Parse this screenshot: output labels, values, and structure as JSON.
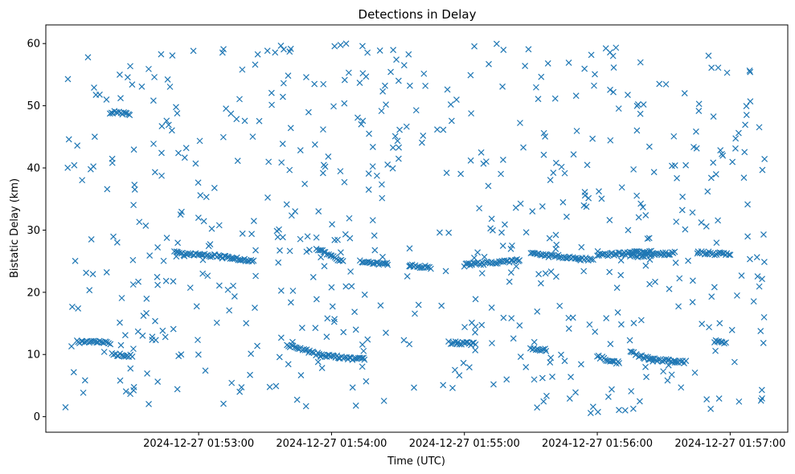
{
  "chart_data": {
    "type": "scatter",
    "title": "Detections in Delay",
    "xlabel": "Time (UTC)",
    "ylabel": "Bistatic Delay (km)",
    "marker": "x",
    "color": "#1f77b4",
    "grid": false,
    "x_unit": "time",
    "xlim": [
      "2024-12-27 01:51:51",
      "2024-12-27 01:57:26"
    ],
    "ylim": [
      -2.5,
      63
    ],
    "x_ticks": [
      "2024-12-27 01:53:00",
      "2024-12-27 01:54:00",
      "2024-12-27 01:55:00",
      "2024-12-27 01:56:00",
      "2024-12-27 01:57:00"
    ],
    "y_ticks": [
      "0",
      "10",
      "20",
      "30",
      "40",
      "50",
      "60"
    ],
    "series": [
      {
        "tracks": [
          {
            "x": [
              "2024-12-27 01:52:05",
              "2024-12-27 01:52:20"
            ],
            "y": [
              12.1,
              11.9
            ]
          },
          {
            "x": [
              "2024-12-27 01:52:21",
              "2024-12-27 01:52:30"
            ],
            "y": [
              10.1,
              9.7
            ]
          },
          {
            "x": [
              "2024-12-27 01:52:20",
              "2024-12-27 01:52:29"
            ],
            "y": [
              49.0,
              48.7
            ]
          },
          {
            "x": [
              "2024-12-27 01:52:50",
              "2024-12-27 01:53:15"
            ],
            "y": [
              26.3,
              25.6
            ]
          },
          {
            "x": [
              "2024-12-27 01:53:15",
              "2024-12-27 01:53:25"
            ],
            "y": [
              25.6,
              25.0
            ]
          },
          {
            "x": [
              "2024-12-27 01:53:40",
              "2024-12-27 01:53:55"
            ],
            "y": [
              11.5,
              9.9
            ]
          },
          {
            "x": [
              "2024-12-27 01:53:55",
              "2024-12-27 01:54:15"
            ],
            "y": [
              9.8,
              9.2
            ]
          },
          {
            "x": [
              "2024-12-27 01:53:53",
              "2024-12-27 01:54:05"
            ],
            "y": [
              27.0,
              25.0
            ]
          },
          {
            "x": [
              "2024-12-27 01:54:13",
              "2024-12-27 01:54:25"
            ],
            "y": [
              24.9,
              24.5
            ]
          },
          {
            "x": [
              "2024-12-27 01:54:35",
              "2024-12-27 01:54:45"
            ],
            "y": [
              24.3,
              24.0
            ]
          },
          {
            "x": [
              "2024-12-27 01:54:53",
              "2024-12-27 01:55:05"
            ],
            "y": [
              11.9,
              11.7
            ]
          },
          {
            "x": [
              "2024-12-27 01:55:00",
              "2024-12-27 01:55:25"
            ],
            "y": [
              24.4,
              25.1
            ]
          },
          {
            "x": [
              "2024-12-27 01:55:30",
              "2024-12-27 01:55:37"
            ],
            "y": [
              11.0,
              10.8
            ]
          },
          {
            "x": [
              "2024-12-27 01:55:30",
              "2024-12-27 01:55:58"
            ],
            "y": [
              26.2,
              25.2
            ]
          },
          {
            "x": [
              "2024-12-27 01:56:00",
              "2024-12-27 01:56:10"
            ],
            "y": [
              9.7,
              8.6
            ]
          },
          {
            "x": [
              "2024-12-27 01:56:00",
              "2024-12-27 01:56:25"
            ],
            "y": [
              26.0,
              26.5
            ]
          },
          {
            "x": [
              "2024-12-27 01:56:15",
              "2024-12-27 01:56:25"
            ],
            "y": [
              10.3,
              9.1
            ]
          },
          {
            "x": [
              "2024-12-27 01:56:15",
              "2024-12-27 01:56:35"
            ],
            "y": [
              25.8,
              26.3
            ]
          },
          {
            "x": [
              "2024-12-27 01:56:25",
              "2024-12-27 01:56:40"
            ],
            "y": [
              9.2,
              8.8
            ]
          },
          {
            "x": [
              "2024-12-27 01:56:45",
              "2024-12-27 01:57:00"
            ],
            "y": [
              26.4,
              26.1
            ]
          },
          {
            "x": [
              "2024-12-27 01:56:53",
              "2024-12-27 01:56:58"
            ],
            "y": [
              12.1,
              12.0
            ]
          }
        ],
        "scatter": [
          {
            "x": [
              "2024-12-27 01:51:51",
              "2024-12-27 01:57:26"
            ],
            "y": [
              0.5,
              60
            ]
          }
        ]
      }
    ]
  }
}
